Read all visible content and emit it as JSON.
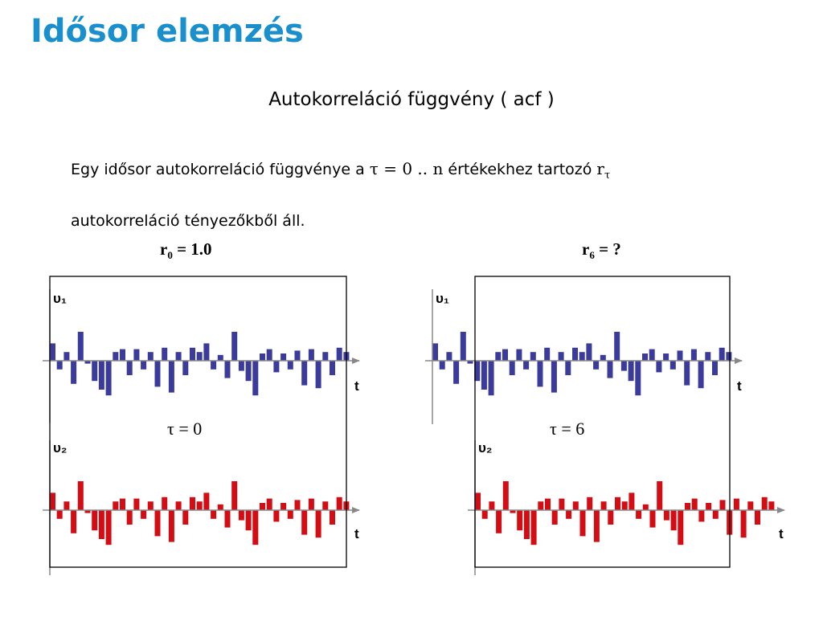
{
  "slide": {
    "title": "Idősor elemzés",
    "subtitle": "Autokorreláció függvény ( acf )",
    "para_part1": "Egy  idősor autokorreláció függvénye a ",
    "tau_symbol": "τ",
    "para_range": " = 0 .. n",
    "para_part2": " értékekhez tartozó ",
    "r_symbol": "r",
    "para_line2": "autokorreláció tényezőkből áll."
  },
  "panels": {
    "left": {
      "r_prefix": "r",
      "r_sub": "0",
      "r_rest": " = 1.0",
      "tau_text": "τ = 0"
    },
    "right": {
      "r_prefix": "r",
      "r_sub": "6",
      "r_rest": " = ?",
      "tau_text": "τ = 6"
    }
  },
  "axes": {
    "upsilon1": "υ₁",
    "upsilon2": "υ₂",
    "t": "t"
  },
  "colors": {
    "series_u1": "#3b3b9c",
    "series_u2": "#d40c14",
    "title": "#1a8fce"
  },
  "chart_data": [
    {
      "type": "bar",
      "series": [
        {
          "name": "υ₁",
          "values": [
            0.6,
            -0.3,
            0.3,
            -0.8,
            1.0,
            -0.1,
            -0.7,
            -1.0,
            -1.2,
            0.3,
            0.4,
            -0.5,
            0.4,
            -0.3,
            0.3,
            -0.9,
            0.45,
            -1.1,
            0.3,
            -0.5,
            0.45,
            0.3,
            0.6,
            -0.3,
            0.2,
            -0.6,
            1.0,
            -0.35,
            -0.7,
            -1.2,
            0.25,
            0.4,
            -0.4,
            0.25,
            -0.3,
            0.35,
            -0.85,
            0.4,
            -0.95,
            0.3,
            -0.5,
            0.45,
            0.3
          ]
        }
      ]
    },
    {
      "type": "bar",
      "series": [
        {
          "name": "υ₂",
          "values": [
            0.6,
            -0.3,
            0.3,
            -0.8,
            1.0,
            -0.1,
            -0.7,
            -1.0,
            -1.2,
            0.3,
            0.4,
            -0.5,
            0.4,
            -0.3,
            0.3,
            -0.9,
            0.45,
            -1.1,
            0.3,
            -0.5,
            0.45,
            0.3,
            0.6,
            -0.3,
            0.2,
            -0.6,
            1.0,
            -0.35,
            -0.7,
            -1.2,
            0.25,
            0.4,
            -0.4,
            0.25,
            -0.3,
            0.35,
            -0.85,
            0.4,
            -0.95,
            0.3,
            -0.5,
            0.45,
            0.3
          ]
        }
      ]
    }
  ]
}
